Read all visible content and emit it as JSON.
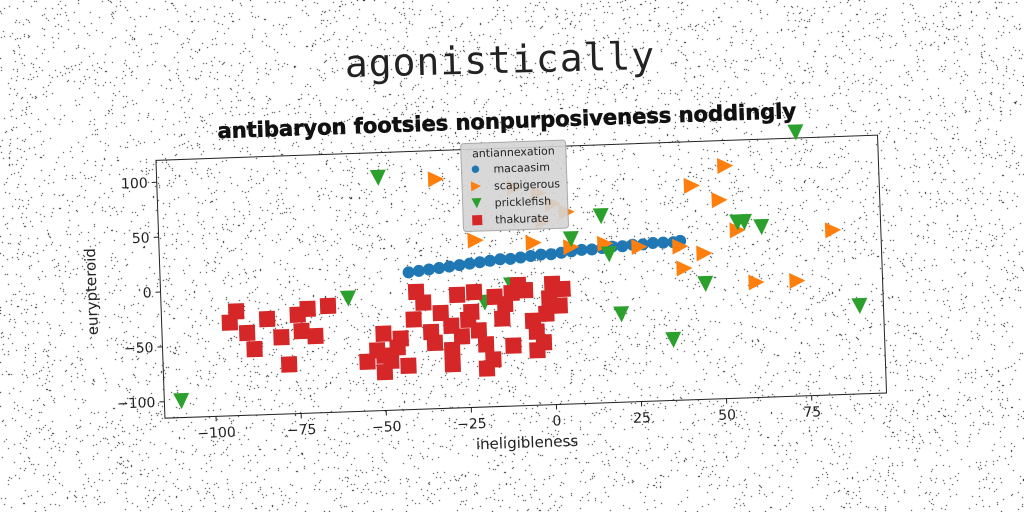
{
  "suptitle": "agonistically",
  "chart_data": {
    "type": "scatter",
    "title": "antibaryon footsies nonpurposiveness noddingly",
    "xlabel": "ineligibleness",
    "ylabel": "eurypteroid",
    "xlim": [
      -115,
      97
    ],
    "ylim": [
      -115,
      120
    ],
    "xticks": [
      -100,
      -75,
      -50,
      -25,
      0,
      25,
      50,
      75
    ],
    "yticks": [
      -100,
      -50,
      0,
      50,
      100
    ],
    "grid": false,
    "legend": {
      "title": "antiannexation",
      "placement": "top-center"
    },
    "series": [
      {
        "name": "macaasim",
        "marker": "circle",
        "color": "#1f77b4",
        "points": [
          [
            -42,
            10
          ],
          [
            -39,
            11
          ],
          [
            -36,
            12
          ],
          [
            -33,
            13
          ],
          [
            -30,
            14
          ],
          [
            -27,
            15
          ],
          [
            -24,
            16
          ],
          [
            -21,
            17
          ],
          [
            -18,
            18
          ],
          [
            -15,
            19
          ],
          [
            -12,
            19
          ],
          [
            -9,
            20
          ],
          [
            -6,
            21
          ],
          [
            -3,
            22
          ],
          [
            0,
            22
          ],
          [
            3,
            23
          ],
          [
            6,
            24
          ],
          [
            9,
            25
          ],
          [
            12,
            25
          ],
          [
            15,
            26
          ],
          [
            18,
            27
          ],
          [
            21,
            27
          ],
          [
            24,
            28
          ],
          [
            27,
            28
          ],
          [
            30,
            29
          ],
          [
            33,
            29
          ],
          [
            36,
            29
          ],
          [
            38,
            30
          ]
        ]
      },
      {
        "name": "scapigerous",
        "marker": "triangle-right",
        "color": "#ff7f0e",
        "points": [
          [
            -33,
            94
          ],
          [
            -10,
            84
          ],
          [
            -3,
            78
          ],
          [
            1,
            68
          ],
          [
            5,
            60
          ],
          [
            -2,
            52
          ],
          [
            -22,
            37
          ],
          [
            -5,
            33
          ],
          [
            6,
            28
          ],
          [
            16,
            30
          ],
          [
            26,
            26
          ],
          [
            38,
            25
          ],
          [
            45,
            18
          ],
          [
            39,
            5
          ],
          [
            42,
            80
          ],
          [
            52,
            97
          ],
          [
            50,
            66
          ],
          [
            55,
            38
          ],
          [
            60,
            -10
          ],
          [
            72,
            -10
          ],
          [
            83,
            35
          ]
        ]
      },
      {
        "name": "pricklefish",
        "marker": "triangle-down",
        "color": "#2ca02c",
        "points": [
          [
            -110,
            -100
          ],
          [
            -60,
            -12
          ],
          [
            -50,
            97
          ],
          [
            -20,
            -20
          ],
          [
            -12,
            -5
          ],
          [
            -8,
            -10
          ],
          [
            -5,
            -40
          ],
          [
            6,
            35
          ],
          [
            15,
            55
          ],
          [
            17,
            20
          ],
          [
            20,
            -35
          ],
          [
            35,
            -60
          ],
          [
            45,
            -10
          ],
          [
            55,
            45
          ],
          [
            57,
            45
          ],
          [
            62,
            40
          ],
          [
            73,
            125
          ],
          [
            90,
            -35
          ]
        ]
      },
      {
        "name": "thakurate",
        "marker": "square",
        "color": "#d62728",
        "points": [
          [
            -93,
            -20
          ],
          [
            -95,
            -30
          ],
          [
            -90,
            -40
          ],
          [
            -88,
            -55
          ],
          [
            -84,
            -28
          ],
          [
            -80,
            -45
          ],
          [
            -78,
            -70
          ],
          [
            -75,
            -25
          ],
          [
            -74,
            -40
          ],
          [
            -72,
            -20
          ],
          [
            -70,
            -45
          ],
          [
            -66,
            -18
          ],
          [
            -55,
            -70
          ],
          [
            -52,
            -60
          ],
          [
            -50,
            -65
          ],
          [
            -50,
            -80
          ],
          [
            -48,
            -70
          ],
          [
            -46,
            -58
          ],
          [
            -45,
            -50
          ],
          [
            -43,
            -75
          ],
          [
            -41,
            -33
          ],
          [
            -40,
            -8
          ],
          [
            -38,
            -18
          ],
          [
            -36,
            -45
          ],
          [
            -35,
            -55
          ],
          [
            -33,
            -28
          ],
          [
            -30,
            -40
          ],
          [
            -30,
            -62
          ],
          [
            -28,
            -12
          ],
          [
            -27,
            -50
          ],
          [
            -25,
            -35
          ],
          [
            -24,
            -28
          ],
          [
            -23,
            -10
          ],
          [
            -22,
            -45
          ],
          [
            -20,
            -58
          ],
          [
            -18,
            -72
          ],
          [
            -17,
            -15
          ],
          [
            -15,
            -35
          ],
          [
            -14,
            -22
          ],
          [
            -12,
            -60
          ],
          [
            -12,
            -12
          ],
          [
            -10,
            -5
          ],
          [
            -8,
            -10
          ],
          [
            -6,
            -38
          ],
          [
            -5,
            -48
          ],
          [
            -3,
            -58
          ],
          [
            -2,
            -32
          ],
          [
            0,
            -5
          ],
          [
            -1,
            -18
          ],
          [
            2,
            -25
          ],
          [
            3,
            -10
          ],
          [
            -50,
            -45
          ],
          [
            -20,
            -80
          ],
          [
            -30,
            -75
          ],
          [
            -5,
            -65
          ]
        ]
      }
    ]
  }
}
